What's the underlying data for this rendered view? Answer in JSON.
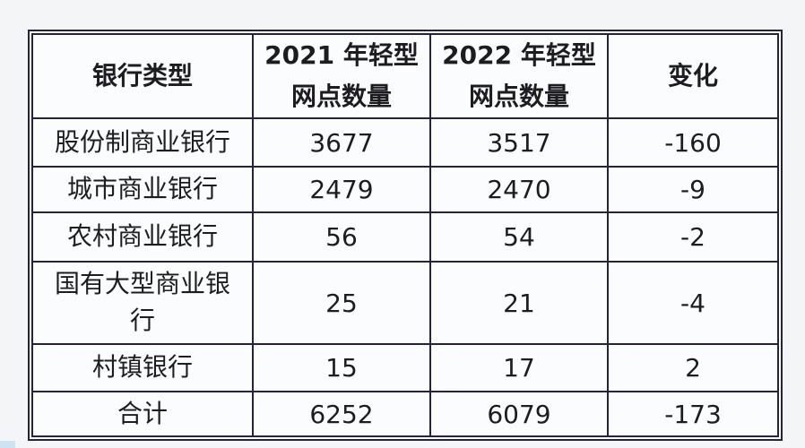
{
  "colors": {
    "page_background": "#f4f5f7",
    "table_border": "#23233f",
    "cell_background": "#fbfcfd",
    "text": "#1d1d21",
    "corner_artifact": "#cfe2f1"
  },
  "table": {
    "headers": [
      {
        "lines": [
          "银行类型"
        ]
      },
      {
        "lines": [
          "2021 年轻型",
          "网点数量"
        ]
      },
      {
        "lines": [
          "2022 年轻型",
          "网点数量"
        ]
      },
      {
        "lines": [
          "变化"
        ]
      }
    ],
    "rows": [
      [
        "股份制商业银行",
        "3677",
        "3517",
        "-160"
      ],
      [
        "城市商业银行",
        "2479",
        "2470",
        "-9"
      ],
      [
        "农村商业银行",
        "56",
        "54",
        "-2"
      ],
      [
        "国有大型商业银行",
        "25",
        "21",
        "-4"
      ],
      [
        "村镇银行",
        "15",
        "17",
        "2"
      ],
      [
        "合计",
        "6252",
        "6079",
        "-173"
      ]
    ]
  },
  "chart_data": {
    "type": "table",
    "title": "",
    "columns": [
      "银行类型",
      "2021 年轻型网点数量",
      "2022 年轻型网点数量",
      "变化"
    ],
    "rows": [
      [
        "股份制商业银行",
        3677,
        3517,
        -160
      ],
      [
        "城市商业银行",
        2479,
        2470,
        -9
      ],
      [
        "农村商业银行",
        56,
        54,
        -2
      ],
      [
        "国有大型商业银行",
        25,
        21,
        -4
      ],
      [
        "村镇银行",
        15,
        17,
        2
      ],
      [
        "合计",
        6252,
        6079,
        -173
      ]
    ]
  }
}
